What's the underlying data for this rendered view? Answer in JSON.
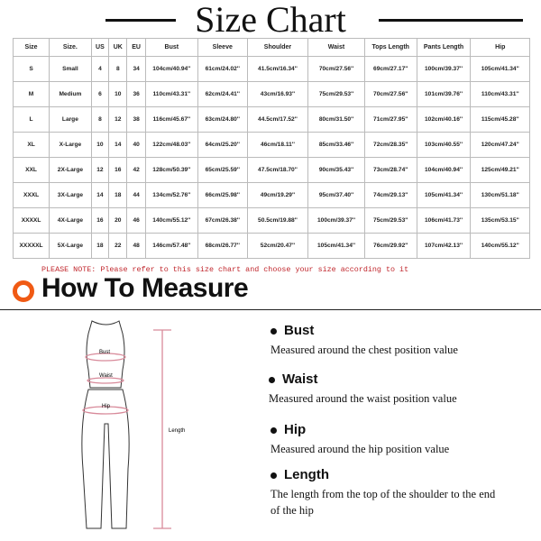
{
  "title": "Size Chart",
  "table": {
    "headers": [
      "Size",
      "Size.",
      "US",
      "UK",
      "EU",
      "Bust",
      "Sleeve",
      "Shoulder",
      "Waist",
      "Tops Length",
      "Pants Length",
      "Hip"
    ],
    "rows": [
      [
        "S",
        "Small",
        "4",
        "8",
        "34",
        "104cm/40.94''",
        "61cm/24.02''",
        "41.5cm/16.34''",
        "70cm/27.56''",
        "69cm/27.17''",
        "100cm/39.37''",
        "105cm/41.34''"
      ],
      [
        "M",
        "Medium",
        "6",
        "10",
        "36",
        "110cm/43.31''",
        "62cm/24.41''",
        "43cm/16.93''",
        "75cm/29.53''",
        "70cm/27.56''",
        "101cm/39.76''",
        "110cm/43.31''"
      ],
      [
        "L",
        "Large",
        "8",
        "12",
        "38",
        "116cm/45.67''",
        "63cm/24.80''",
        "44.5cm/17.52''",
        "80cm/31.50''",
        "71cm/27.95''",
        "102cm/40.16''",
        "115cm/45.28''"
      ],
      [
        "XL",
        "X-Large",
        "10",
        "14",
        "40",
        "122cm/48.03''",
        "64cm/25.20''",
        "46cm/18.11''",
        "85cm/33.46''",
        "72cm/28.35''",
        "103cm/40.55''",
        "120cm/47.24''"
      ],
      [
        "XXL",
        "2X-Large",
        "12",
        "16",
        "42",
        "128cm/50.39''",
        "65cm/25.59''",
        "47.5cm/18.70''",
        "90cm/35.43''",
        "73cm/28.74''",
        "104cm/40.94''",
        "125cm/49.21''"
      ],
      [
        "XXXL",
        "3X-Large",
        "14",
        "18",
        "44",
        "134cm/52.76''",
        "66cm/25.98''",
        "49cm/19.29''",
        "95cm/37.40''",
        "74cm/29.13''",
        "105cm/41.34''",
        "130cm/51.18''"
      ],
      [
        "XXXXL",
        "4X-Large",
        "16",
        "20",
        "46",
        "140cm/55.12''",
        "67cm/26.38''",
        "50.5cm/19.88''",
        "100cm/39.37''",
        "75cm/29.53''",
        "106cm/41.73''",
        "135cm/53.15''"
      ],
      [
        "XXXXXL",
        "5X-Large",
        "18",
        "22",
        "48",
        "146cm/57.48''",
        "68cm/26.77''",
        "52cm/20.47''",
        "105cm/41.34''",
        "76cm/29.92''",
        "107cm/42.13''",
        "140cm/55.12''"
      ]
    ]
  },
  "note": "PLEASE NOTE: Please refer to this size chart and choose your size according to it",
  "how_to_measure": "How To Measure",
  "figure_labels": {
    "bust": "Bust",
    "waist": "Waist",
    "hip": "Hip",
    "length": "Length"
  },
  "items": [
    {
      "title": "Bust",
      "desc": "Measured around the chest position value"
    },
    {
      "title": "Waist",
      "desc": "Measured around the waist position value"
    },
    {
      "title": "Hip",
      "desc": "Measured around the  hip position value"
    },
    {
      "title": "Length",
      "desc": "The length from the top of the shoulder to the end of the hip"
    }
  ],
  "colors": {
    "accent": "#f05a14",
    "note": "#c0262c",
    "measure_line": "#d88a9a"
  }
}
